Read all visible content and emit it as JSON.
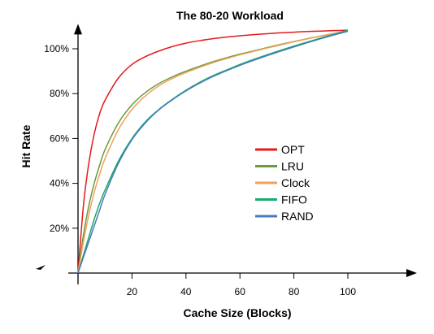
{
  "chart_data": {
    "type": "line",
    "title": "The 80-20 Workload",
    "xlabel": "Cache Size (Blocks)",
    "ylabel": "Hit Rate",
    "xlim": [
      0,
      125
    ],
    "ylim": [
      0,
      110
    ],
    "x_ticks": [
      20,
      40,
      60,
      80,
      100
    ],
    "y_ticks": [
      20,
      40,
      60,
      80,
      100
    ],
    "y_tick_labels": [
      "20%",
      "40%",
      "60%",
      "80%",
      "100%"
    ],
    "grid": false,
    "legend_position": "center-right",
    "x": [
      0,
      2,
      4,
      6,
      8,
      10,
      15,
      20,
      25,
      30,
      35,
      40,
      45,
      50,
      55,
      60,
      65,
      70,
      75,
      80,
      85,
      90,
      95,
      100
    ],
    "series": [
      {
        "name": "OPT",
        "color": "#e41a1c",
        "values": [
          0,
          30,
          49,
          62,
          71,
          77,
          87,
          93,
          96.5,
          99,
          101,
          102.5,
          103.6,
          104.5,
          105.2,
          105.8,
          106.3,
          106.7,
          107.1,
          107.4,
          107.7,
          107.9,
          108.1,
          108.3
        ]
      },
      {
        "name": "LRU",
        "color": "#6a9a3a",
        "values": [
          0,
          17,
          30,
          40,
          48,
          55,
          67,
          75,
          80.5,
          84.5,
          87.5,
          90,
          92.2,
          94.2,
          96,
          97.6,
          99,
          100.5,
          101.9,
          103.2,
          104.5,
          105.7,
          106.8,
          108
        ]
      },
      {
        "name": "Clock",
        "color": "#f0a05a",
        "values": [
          0,
          14,
          26,
          36,
          44,
          51,
          64,
          73,
          79,
          83.5,
          86.8,
          89.4,
          91.7,
          93.8,
          95.6,
          97.3,
          98.8,
          100.3,
          101.7,
          103.1,
          104.4,
          105.7,
          106.9,
          108
        ]
      },
      {
        "name": "FIFO",
        "color": "#1aaa6a",
        "values": [
          0,
          8,
          16,
          24,
          31,
          37,
          50,
          60,
          67.5,
          73,
          77.5,
          81.5,
          85,
          88,
          90.5,
          93,
          95.2,
          97.3,
          99.3,
          101.2,
          103,
          104.8,
          106.5,
          108.3
        ]
      },
      {
        "name": "RAND",
        "color": "#4a7bbf",
        "values": [
          0,
          7,
          14,
          21,
          28,
          35,
          49,
          59.5,
          67,
          72.8,
          77.3,
          81.2,
          84.6,
          87.6,
          90.2,
          92.6,
          94.8,
          96.9,
          98.9,
          100.8,
          102.7,
          104.5,
          106.2,
          107.8
        ]
      }
    ]
  }
}
